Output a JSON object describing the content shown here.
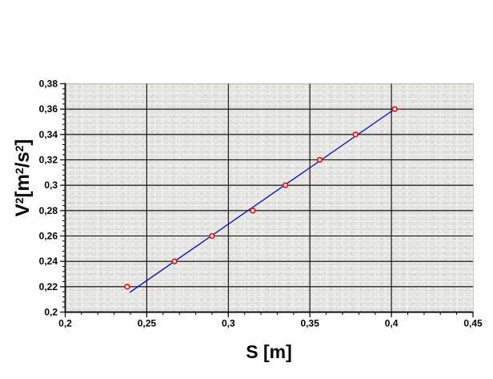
{
  "figure": {
    "background": "#ffffff",
    "plot_background": "#e4e4e0"
  },
  "chart_data": {
    "type": "scatter",
    "title": "",
    "xlabel": "S [m]",
    "ylabel": "V^2 [m^2/s^2]",
    "ylabel_parts": [
      {
        "text": "V"
      },
      {
        "text": "2",
        "sup": true
      },
      {
        "text": "[m"
      },
      {
        "text": "2",
        "sup": true
      },
      {
        "text": "/s"
      },
      {
        "text": "2",
        "sup": true
      },
      {
        "text": "]"
      }
    ],
    "x": [
      0.238,
      0.267,
      0.29,
      0.315,
      0.335,
      0.356,
      0.378,
      0.402
    ],
    "y": [
      0.22,
      0.24,
      0.26,
      0.28,
      0.3,
      0.32,
      0.34,
      0.36
    ],
    "fit_line": {
      "x1": 0.2395,
      "y1": 0.2155,
      "x2": 0.4025,
      "y2": 0.3605
    },
    "xlim": [
      0.2,
      0.45
    ],
    "ylim": [
      0.2,
      0.38
    ],
    "x_tick_values": [
      0.2,
      0.25,
      0.3,
      0.35,
      0.4,
      0.45
    ],
    "x_tick_labels": [
      "0,2",
      "0,25",
      "0,3",
      "0,35",
      "0,4",
      "0,45"
    ],
    "y_tick_values": [
      0.2,
      0.22,
      0.24,
      0.26,
      0.28,
      0.3,
      0.32,
      0.34,
      0.36,
      0.38
    ],
    "y_tick_labels": [
      "0,2",
      "0,22",
      "0,24",
      "0,26",
      "0,28",
      "0,3",
      "0,32",
      "0,34",
      "0,36",
      "0,38"
    ],
    "x_minor_step": 0.01,
    "y_minor_step": 0.004,
    "grid": true,
    "legend_position": "none",
    "colors": {
      "fit_line": "#0008cc",
      "marker_stroke": "#e61000",
      "marker_fill": "#ffffff",
      "major_grid": "#000000",
      "minor_grid": "#f2f2ee",
      "axis": "#000000",
      "text": "#000000"
    }
  }
}
